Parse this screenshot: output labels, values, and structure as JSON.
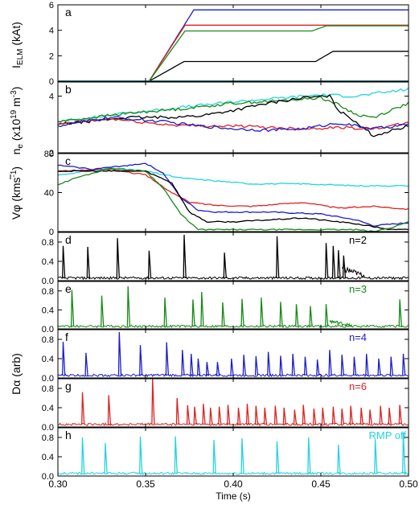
{
  "chart_data": {
    "type": "line",
    "xlabel": "Time (s)",
    "xlim": [
      0.3,
      0.5
    ],
    "x_ticks": [
      "0.30",
      "0.35",
      "0.40",
      "0.45",
      "0.50"
    ],
    "colors": {
      "n2": "#000000",
      "n3": "#178a17",
      "n4": "#1d1dcc",
      "n6": "#dd2222",
      "off": "#22d4dd"
    },
    "panels": [
      {
        "letter": "a",
        "ylabel": "I_ELM (kAt)",
        "ylim": [
          0,
          6
        ],
        "y_ticks": [
          "0",
          "2",
          "4",
          "6"
        ],
        "series": [
          {
            "key": "n4",
            "x": [
              0.3,
              0.352,
              0.3775,
              0.5
            ],
            "y": [
              0,
              0,
              5.6,
              5.6
            ]
          },
          {
            "key": "n6",
            "x": [
              0.3,
              0.352,
              0.3725,
              0.5
            ],
            "y": [
              0,
              0,
              4.4,
              4.4
            ]
          },
          {
            "key": "n3",
            "x": [
              0.3,
              0.352,
              0.3725,
              0.445,
              0.453,
              0.5
            ],
            "y": [
              0,
              0,
              3.95,
              3.95,
              4.35,
              4.35
            ]
          },
          {
            "key": "n2",
            "x": [
              0.3,
              0.352,
              0.372,
              0.447,
              0.457,
              0.5
            ],
            "y": [
              0,
              0,
              1.55,
              1.55,
              2.35,
              2.35
            ]
          },
          {
            "key": "off",
            "x": [
              0.3,
              0.5
            ],
            "y": [
              0.02,
              0.02
            ]
          }
        ]
      },
      {
        "letter": "b",
        "ylabel": "n̄e (x10^19 m^-3)",
        "ylim": [
          2,
          4.5
        ],
        "y_ticks": [
          "2",
          "4"
        ],
        "series": [
          {
            "key": "off",
            "x": [
              0.3,
              0.34,
              0.37,
              0.4,
              0.43,
              0.45,
              0.47,
              0.5
            ],
            "y": [
              3.1,
              3.4,
              3.6,
              3.8,
              3.95,
              4.05,
              4.0,
              4.25
            ]
          },
          {
            "key": "n3",
            "x": [
              0.3,
              0.34,
              0.37,
              0.4,
              0.43,
              0.45,
              0.46,
              0.47,
              0.48,
              0.5
            ],
            "y": [
              3.1,
              3.4,
              3.55,
              3.75,
              3.85,
              3.95,
              3.7,
              3.35,
              3.25,
              3.75
            ]
          },
          {
            "key": "n2",
            "x": [
              0.3,
              0.34,
              0.36,
              0.38,
              0.4,
              0.42,
              0.44,
              0.455,
              0.46,
              0.47,
              0.48,
              0.5
            ],
            "y": [
              3.0,
              3.25,
              3.25,
              3.3,
              3.5,
              3.75,
              3.95,
              4.0,
              3.5,
              3.1,
              2.6,
              2.95
            ]
          },
          {
            "key": "n6",
            "x": [
              0.3,
              0.33,
              0.36,
              0.38,
              0.4,
              0.42,
              0.44,
              0.46,
              0.48,
              0.5
            ],
            "y": [
              3.0,
              3.2,
              3.0,
              2.95,
              2.95,
              2.9,
              2.85,
              2.9,
              2.85,
              3.05
            ]
          },
          {
            "key": "n4",
            "x": [
              0.3,
              0.33,
              0.36,
              0.38,
              0.4,
              0.42,
              0.44,
              0.46,
              0.48,
              0.5
            ],
            "y": [
              2.95,
              3.25,
              3.1,
              2.95,
              2.85,
              2.8,
              2.85,
              3.05,
              2.85,
              3.0
            ]
          }
        ]
      },
      {
        "letter": "c",
        "ylabel": "Vφ (kms^-1)",
        "ylim": [
          0,
          80
        ],
        "y_ticks": [
          "0",
          "40",
          "80"
        ],
        "series": [
          {
            "key": "off",
            "x": [
              0.3,
              0.33,
              0.35,
              0.37,
              0.39,
              0.41,
              0.44,
              0.47,
              0.5
            ],
            "y": [
              58,
              65,
              62,
              55,
              52,
              49,
              49,
              47,
              47
            ]
          },
          {
            "key": "n6",
            "x": [
              0.3,
              0.33,
              0.35,
              0.365,
              0.375,
              0.39,
              0.41,
              0.44,
              0.46,
              0.48,
              0.5
            ],
            "y": [
              62,
              64,
              58,
              40,
              30,
              27,
              26,
              30,
              24,
              26,
              23
            ]
          },
          {
            "key": "n4",
            "x": [
              0.3,
              0.32,
              0.35,
              0.36,
              0.37,
              0.38,
              0.39,
              0.42,
              0.45,
              0.47,
              0.48,
              0.5
            ],
            "y": [
              68,
              64,
              70,
              60,
              35,
              22,
              20,
              20,
              18,
              12,
              6,
              9
            ]
          },
          {
            "key": "n2",
            "x": [
              0.3,
              0.32,
              0.35,
              0.365,
              0.375,
              0.385,
              0.4,
              0.42,
              0.44,
              0.47,
              0.49,
              0.5
            ],
            "y": [
              62,
              62,
              62,
              50,
              20,
              10,
              10,
              12,
              14,
              8,
              2,
              2
            ]
          },
          {
            "key": "n3",
            "x": [
              0.3,
              0.31,
              0.33,
              0.35,
              0.36,
              0.37,
              0.38,
              0.45,
              0.47,
              0.48,
              0.49,
              0.5
            ],
            "y": [
              48,
              55,
              65,
              62,
              45,
              18,
              2,
              2,
              2,
              0,
              4,
              10
            ]
          }
        ]
      },
      {
        "letter": "d",
        "label": "n=2",
        "key": "n2",
        "ylim": [
          0,
          1.0
        ],
        "y_ticks": [
          "0.0",
          "0.4",
          "0.8"
        ],
        "spikes": {
          "x": [
            0.303,
            0.317,
            0.334,
            0.352,
            0.372,
            0.395,
            0.425,
            0.453,
            0.457,
            0.46,
            0.463
          ],
          "y": [
            0.72,
            0.7,
            0.88,
            0.62,
            0.95,
            0.58,
            0.92,
            0.78,
            0.72,
            0.63,
            0.52
          ]
        },
        "bursts": [
          {
            "x": [
              0.462,
              0.475
            ],
            "y": 0.28
          }
        ]
      },
      {
        "letter": "e",
        "label": "n=3",
        "key": "n3",
        "ylim": [
          0,
          1.0
        ],
        "y_ticks": [
          "0.0",
          "0.4",
          "0.8"
        ],
        "spikes": {
          "x": [
            0.308,
            0.325,
            0.34,
            0.361,
            0.377,
            0.382,
            0.394,
            0.405,
            0.416,
            0.427,
            0.436,
            0.444,
            0.453,
            0.495
          ],
          "y": [
            0.82,
            0.7,
            0.9,
            0.66,
            0.62,
            0.78,
            0.56,
            0.63,
            0.66,
            0.57,
            0.52,
            0.48,
            0.52,
            0.62
          ]
        },
        "bursts": [
          {
            "x": [
              0.455,
              0.468
            ],
            "y": 0.18
          }
        ]
      },
      {
        "letter": "f",
        "label": "n=4",
        "key": "n4",
        "ylim": [
          0,
          1.0
        ],
        "y_ticks": [
          "0.0",
          "0.4",
          "0.8"
        ],
        "spikes": {
          "x": [
            0.303,
            0.316,
            0.335,
            0.347,
            0.362,
            0.371,
            0.376,
            0.38,
            0.385,
            0.391,
            0.399,
            0.406,
            0.413,
            0.42,
            0.427,
            0.434,
            0.441,
            0.448,
            0.455,
            0.462,
            0.469,
            0.476,
            0.483,
            0.49,
            0.497
          ],
          "y": [
            0.75,
            0.52,
            0.95,
            0.68,
            0.74,
            0.58,
            0.5,
            0.4,
            0.33,
            0.33,
            0.4,
            0.48,
            0.45,
            0.54,
            0.46,
            0.5,
            0.44,
            0.38,
            0.58,
            0.48,
            0.44,
            0.5,
            0.4,
            0.44,
            0.5
          ]
        },
        "bursts": []
      },
      {
        "letter": "g",
        "label": "n=6",
        "key": "n6",
        "ylim": [
          0,
          1.0
        ],
        "y_ticks": [
          "0.0",
          "0.4",
          "0.8"
        ],
        "spikes": {
          "x": [
            0.314,
            0.329,
            0.354,
            0.368,
            0.374,
            0.378,
            0.383,
            0.387,
            0.392,
            0.397,
            0.403,
            0.408,
            0.413,
            0.418,
            0.424,
            0.429,
            0.435,
            0.44,
            0.446,
            0.451,
            0.457,
            0.462,
            0.467,
            0.473,
            0.478,
            0.484,
            0.489,
            0.495
          ],
          "y": [
            0.72,
            0.66,
            1.0,
            0.6,
            0.45,
            0.42,
            0.48,
            0.4,
            0.42,
            0.46,
            0.4,
            0.48,
            0.44,
            0.4,
            0.44,
            0.4,
            0.36,
            0.46,
            0.38,
            0.4,
            0.42,
            0.38,
            0.44,
            0.4,
            0.36,
            0.44,
            0.4,
            0.46
          ]
        },
        "bursts": []
      },
      {
        "letter": "h",
        "label": "RMP off",
        "key": "off",
        "ylim": [
          0,
          1.0
        ],
        "y_ticks": [
          "0.0",
          "0.4",
          "0.8"
        ],
        "spikes": {
          "x": [
            0.314,
            0.327,
            0.347,
            0.367,
            0.389,
            0.405,
            0.425,
            0.443,
            0.46,
            0.481,
            0.497
          ],
          "y": [
            0.8,
            0.68,
            0.82,
            0.82,
            0.75,
            0.78,
            0.72,
            0.8,
            0.65,
            0.76,
            0.9
          ]
        },
        "bursts": []
      }
    ],
    "shared_ylabels": [
      {
        "text": "Dα (arb)",
        "panels": [
          "d",
          "h"
        ]
      }
    ]
  }
}
